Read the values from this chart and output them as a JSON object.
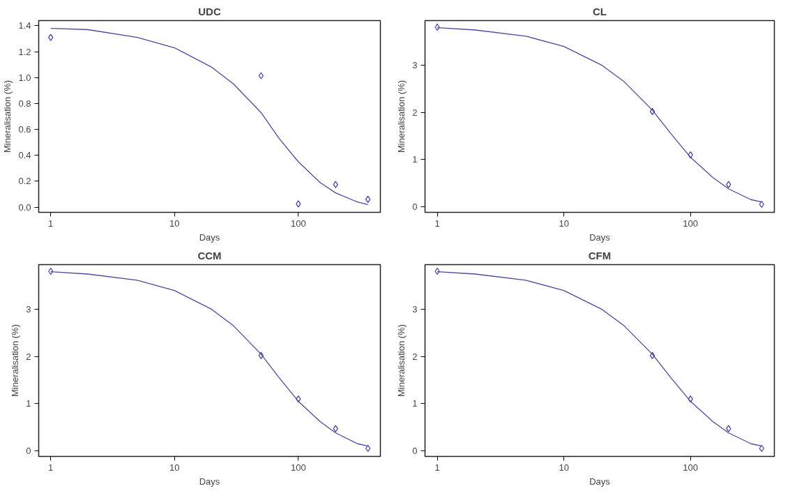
{
  "chart_data": [
    {
      "type": "scatter",
      "title": "UDC",
      "xlabel": "Days",
      "ylabel": "Mineralisation (%)",
      "log": "x",
      "grid": false,
      "xlim": [
        0.8,
        460
      ],
      "xticks": [
        1,
        10,
        100
      ],
      "ylim": [
        -0.04,
        1.44
      ],
      "yticks": [
        {
          "value": 0,
          "label": "0.0"
        },
        {
          "value": 0.2,
          "label": "0.2"
        },
        {
          "value": 0.4,
          "label": "0.4"
        },
        {
          "value": 0.6,
          "label": "0.6"
        },
        {
          "value": 0.8,
          "label": "0.8"
        },
        {
          "value": 1,
          "label": "1.0"
        },
        {
          "value": 1.2,
          "label": "1.2"
        },
        {
          "value": 1.4,
          "label": "1.4"
        }
      ],
      "series": [
        {
          "type": "scatter",
          "marker": "diamond",
          "color": "#3a3aa8",
          "x": [
            1,
            50,
            100,
            200,
            365
          ],
          "values": [
            1.31,
            1.015,
            0.025,
            0.175,
            0.06
          ]
        },
        {
          "type": "line",
          "line_style": "solid",
          "color": "#4a4a9c",
          "x": [
            1,
            2,
            5,
            10,
            20,
            30,
            50,
            70,
            100,
            150,
            200,
            300,
            365
          ],
          "values": [
            1.38,
            1.37,
            1.31,
            1.23,
            1.08,
            0.95,
            0.73,
            0.53,
            0.35,
            0.19,
            0.11,
            0.04,
            0.02
          ]
        }
      ]
    },
    {
      "type": "scatter",
      "title": "CL",
      "xlabel": "Days",
      "ylabel": "Mineralisation (%)",
      "log": "x",
      "grid": false,
      "xlim": [
        0.8,
        460
      ],
      "xticks": [
        1,
        10,
        100
      ],
      "ylim": [
        -0.12,
        3.95
      ],
      "yticks": [
        0,
        1,
        2,
        3
      ],
      "series": [
        {
          "type": "scatter",
          "marker": "diamond",
          "color": "#3a3aa8",
          "x": [
            1,
            50,
            100,
            200,
            365
          ],
          "values": [
            3.81,
            2.02,
            1.1,
            0.47,
            0.05
          ]
        },
        {
          "type": "line",
          "line_style": "solid",
          "color": "#4a4a9c",
          "x": [
            1,
            2,
            5,
            10,
            20,
            30,
            50,
            70,
            100,
            150,
            200,
            300,
            365
          ],
          "values": [
            3.8,
            3.75,
            3.62,
            3.4,
            3.0,
            2.65,
            2.05,
            1.55,
            1.05,
            0.62,
            0.38,
            0.15,
            0.1
          ]
        }
      ]
    },
    {
      "type": "scatter",
      "title": "CCM",
      "xlabel": "Days",
      "ylabel": "Mineralisation (%)",
      "log": "x",
      "grid": false,
      "xlim": [
        0.8,
        460
      ],
      "xticks": [
        1,
        10,
        100
      ],
      "ylim": [
        -0.12,
        3.95
      ],
      "yticks": [
        0,
        1,
        2,
        3
      ],
      "series": [
        {
          "type": "scatter",
          "marker": "diamond",
          "color": "#3a3aa8",
          "x": [
            1,
            50,
            100,
            200,
            365
          ],
          "values": [
            3.81,
            2.02,
            1.1,
            0.47,
            0.05
          ]
        },
        {
          "type": "line",
          "line_style": "solid",
          "color": "#4a4a9c",
          "x": [
            1,
            2,
            5,
            10,
            20,
            30,
            50,
            70,
            100,
            150,
            200,
            300,
            365
          ],
          "values": [
            3.8,
            3.75,
            3.62,
            3.4,
            3.0,
            2.65,
            2.05,
            1.55,
            1.05,
            0.62,
            0.38,
            0.15,
            0.1
          ]
        }
      ]
    },
    {
      "type": "scatter",
      "title": "CFM",
      "xlabel": "Days",
      "ylabel": "Mineralisation (%)",
      "log": "x",
      "grid": false,
      "xlim": [
        0.8,
        460
      ],
      "xticks": [
        1,
        10,
        100
      ],
      "ylim": [
        -0.12,
        3.95
      ],
      "yticks": [
        0,
        1,
        2,
        3
      ],
      "series": [
        {
          "type": "scatter",
          "marker": "diamond",
          "color": "#3a3aa8",
          "x": [
            1,
            50,
            100,
            200,
            365
          ],
          "values": [
            3.81,
            2.02,
            1.1,
            0.47,
            0.05
          ]
        },
        {
          "type": "line",
          "line_style": "solid",
          "color": "#4a4a9c",
          "x": [
            1,
            2,
            5,
            10,
            20,
            30,
            50,
            70,
            100,
            150,
            200,
            300,
            365
          ],
          "values": [
            3.8,
            3.75,
            3.62,
            3.4,
            3.0,
            2.65,
            2.05,
            1.55,
            1.05,
            0.62,
            0.38,
            0.15,
            0.1
          ]
        }
      ]
    }
  ]
}
